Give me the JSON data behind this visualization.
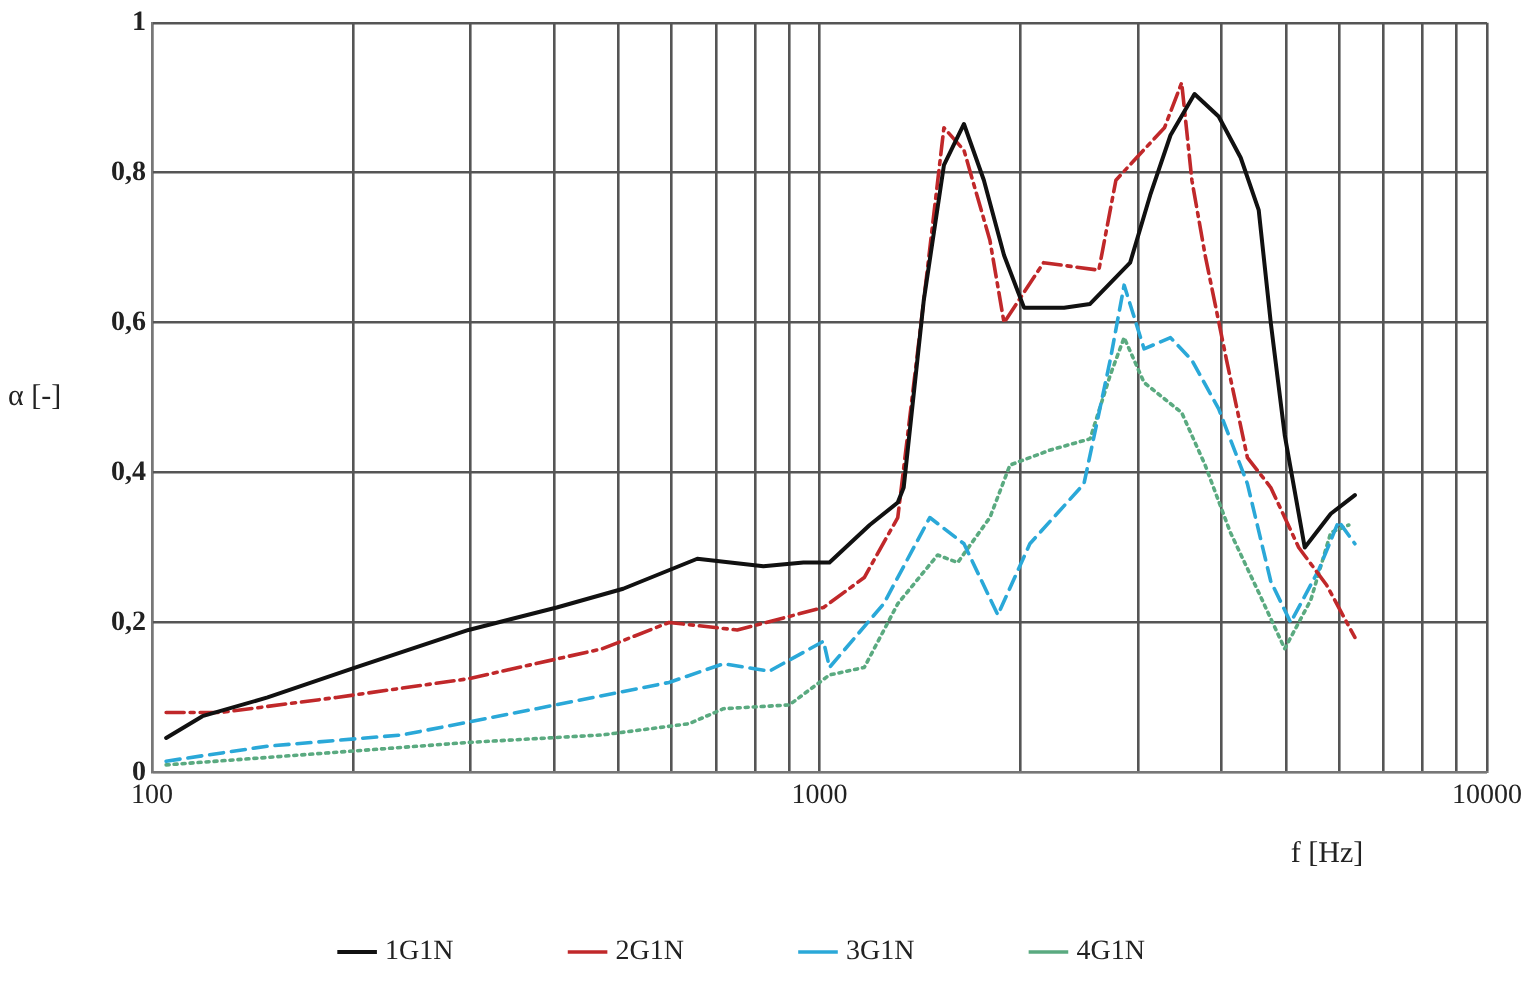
{
  "chart_data": {
    "type": "line",
    "xlabel": "f [Hz]",
    "ylabel": "α [-]",
    "log": "x",
    "grid": true,
    "legend": "bottom",
    "marker": "none",
    "xlim": [
      100,
      10000
    ],
    "xticks": [
      100,
      {
        "value": 200,
        "label": null
      },
      {
        "value": 300,
        "label": null
      },
      {
        "value": 400,
        "label": null
      },
      {
        "value": 500,
        "label": null
      },
      {
        "value": 600,
        "label": null
      },
      {
        "value": 700,
        "label": null
      },
      {
        "value": 800,
        "label": null
      },
      {
        "value": 900,
        "label": null
      },
      1000,
      {
        "value": 2000,
        "label": null
      },
      {
        "value": 3000,
        "label": null
      },
      {
        "value": 4000,
        "label": null
      },
      {
        "value": 5000,
        "label": null
      },
      {
        "value": 6000,
        "label": null
      },
      {
        "value": 7000,
        "label": null
      },
      {
        "value": 8000,
        "label": null
      },
      {
        "value": 9000,
        "label": null
      },
      10000
    ],
    "ylim": [
      0,
      1
    ],
    "yticks": [
      0,
      {
        "value": 0.2,
        "label": "0,2"
      },
      {
        "value": 0.4,
        "label": "0,4"
      },
      {
        "value": 0.6,
        "label": "0,6"
      },
      {
        "value": 0.8,
        "label": "0,8"
      },
      1
    ],
    "series": [
      {
        "name": "1G1N",
        "color": "#111111",
        "line_style": "solid",
        "x": [
          105,
          119,
          149,
          202,
          298,
          404,
          508,
          656,
          824,
          946,
          1035,
          1189,
          1310,
          1337,
          1433,
          1536,
          1646,
          1763,
          1890,
          2025,
          2325,
          2543,
          2920,
          3129,
          3356,
          3646,
          3963,
          4276,
          4550,
          4743,
          4977,
          5333,
          5834,
          6340
        ],
        "values": [
          0.046,
          0.075,
          0.1,
          0.14,
          0.19,
          0.22,
          0.245,
          0.285,
          0.275,
          0.28,
          0.28,
          0.33,
          0.36,
          0.38,
          0.63,
          0.81,
          0.865,
          0.79,
          0.69,
          0.62,
          0.62,
          0.625,
          0.68,
          0.77,
          0.85,
          0.905,
          0.875,
          0.82,
          0.75,
          0.6,
          0.45,
          0.3,
          0.345,
          0.37
        ]
      },
      {
        "name": "2G1N",
        "color": "#c0282a",
        "line_style": "dashdot",
        "x": [
          105,
          127,
          189,
          298,
          473,
          595,
          753,
          1014,
          1167,
          1310,
          1433,
          1536,
          1646,
          1800,
          1890,
          2166,
          2621,
          2780,
          2985,
          3287,
          3488,
          3613,
          3782,
          4072,
          4376,
          4743,
          5223,
          5750,
          6340
        ],
        "values": [
          0.08,
          0.08,
          0.1,
          0.125,
          0.165,
          0.2,
          0.19,
          0.22,
          0.26,
          0.34,
          0.63,
          0.86,
          0.83,
          0.71,
          0.6,
          0.68,
          0.67,
          0.79,
          0.82,
          0.86,
          0.92,
          0.79,
          0.69,
          0.55,
          0.42,
          0.38,
          0.3,
          0.25,
          0.18
        ]
      },
      {
        "name": "3G1N",
        "color": "#2aa8d8",
        "line_style": "dashed",
        "x": [
          105,
          149,
          237,
          377,
          595,
          718,
          841,
          1014,
          1035,
          1248,
          1463,
          1646,
          1850,
          2066,
          2490,
          2726,
          2860,
          3064,
          3356,
          3613,
          3963,
          4376,
          4743,
          5080,
          5596,
          5993,
          6340
        ],
        "values": [
          0.015,
          0.035,
          0.05,
          0.085,
          0.12,
          0.145,
          0.135,
          0.175,
          0.14,
          0.225,
          0.34,
          0.305,
          0.21,
          0.305,
          0.385,
          0.55,
          0.65,
          0.565,
          0.58,
          0.55,
          0.485,
          0.385,
          0.255,
          0.2,
          0.27,
          0.335,
          0.305
        ]
      },
      {
        "name": "4G1N",
        "color": "#5aaa80",
        "line_style": "dotted",
        "x": [
          105,
          149,
          298,
          473,
          638,
          718,
          901,
          1035,
          1167,
          1310,
          1503,
          1611,
          1800,
          1929,
          2215,
          2543,
          2726,
          2860,
          3064,
          3488,
          3782,
          4127,
          4550,
          4977,
          5445,
          5834,
          6208
        ],
        "values": [
          0.01,
          0.02,
          0.04,
          0.05,
          0.065,
          0.085,
          0.09,
          0.13,
          0.14,
          0.225,
          0.29,
          0.28,
          0.34,
          0.41,
          0.43,
          0.445,
          0.53,
          0.58,
          0.52,
          0.48,
          0.41,
          0.32,
          0.24,
          0.165,
          0.23,
          0.32,
          0.33
        ]
      }
    ]
  }
}
